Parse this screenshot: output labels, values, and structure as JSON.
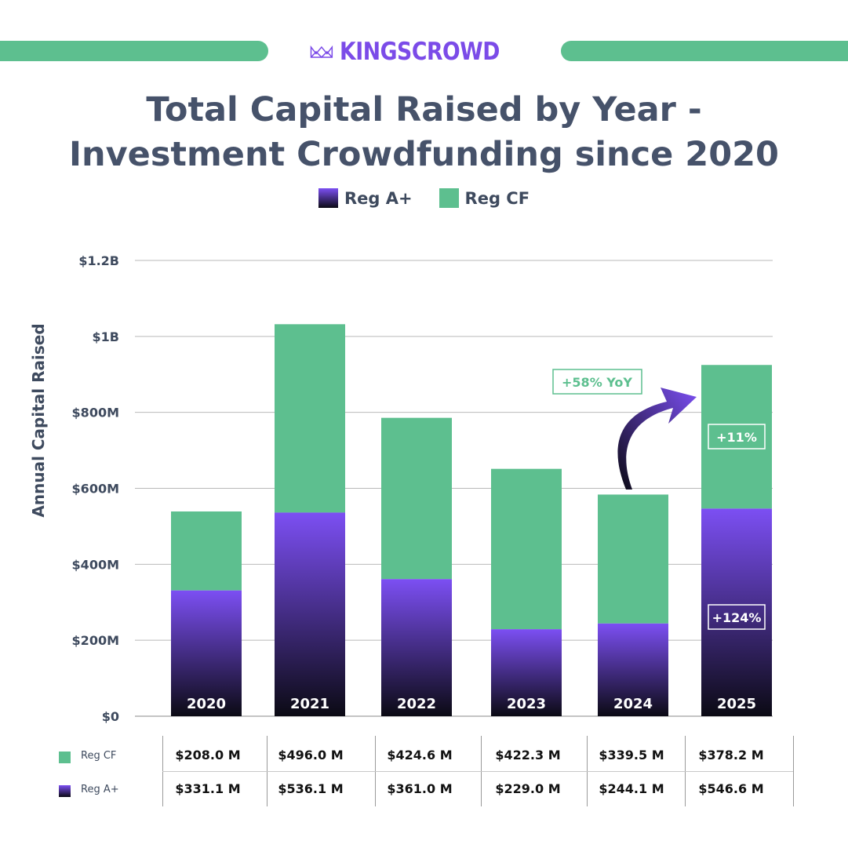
{
  "brand": {
    "name": "KINGSCROWD",
    "accent": "#7b4be8"
  },
  "title": {
    "line1": "Total Capital Raised by Year -",
    "line2": "Investment Crowdfunding since 2020"
  },
  "legend": {
    "reg_a": "Reg A+",
    "reg_cf": "Reg CF"
  },
  "colors": {
    "reg_cf": "#5dbf8f",
    "reg_a_top": "#7c4ff3",
    "reg_a_bottom": "#0b0a14",
    "title": "#46526a"
  },
  "chart_data": {
    "type": "bar",
    "stacked": true,
    "categories": [
      "2020",
      "2021",
      "2022",
      "2023",
      "2024",
      "2025"
    ],
    "series": [
      {
        "name": "Reg A+",
        "values": [
          331.1,
          536.1,
          361.0,
          229.0,
          244.1,
          546.6
        ]
      },
      {
        "name": "Reg CF",
        "values": [
          208.0,
          496.0,
          424.6,
          422.3,
          339.5,
          378.2
        ]
      }
    ],
    "ylabel": "Annual Capital Raised",
    "ylim": [
      0,
      1200
    ],
    "yticks": [
      {
        "value": 0,
        "label": "$0"
      },
      {
        "value": 200,
        "label": "$200M"
      },
      {
        "value": 400,
        "label": "$400M"
      },
      {
        "value": 600,
        "label": "$600M"
      },
      {
        "value": 800,
        "label": "$800M"
      },
      {
        "value": 1000,
        "label": "$1B"
      },
      {
        "value": 1200,
        "label": "$1.2B"
      }
    ],
    "grid": true,
    "legend_position": "top",
    "annotations": {
      "yoy": "+58% YoY",
      "cf_growth": "+11%",
      "rega_growth": "+124%"
    }
  },
  "table": {
    "rows": [
      {
        "label": "Reg CF",
        "values": [
          "$208.0 M",
          "$496.0 M",
          "$424.6 M",
          "$422.3 M",
          "$339.5 M",
          "$378.2 M"
        ]
      },
      {
        "label": "Reg A+",
        "values": [
          "$331.1 M",
          "$536.1 M",
          "$361.0 M",
          "$229.0 M",
          "$244.1 M",
          "$546.6 M"
        ]
      }
    ]
  }
}
